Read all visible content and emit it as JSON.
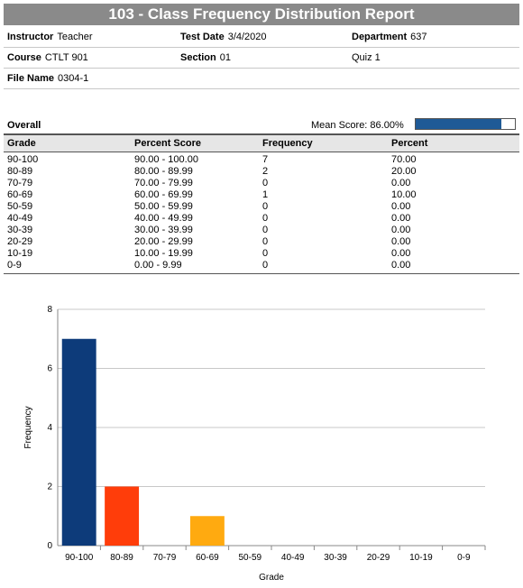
{
  "report_title": "103 - Class Frequency Distribution Report",
  "info": {
    "instructor_label": "Instructor",
    "instructor_value": "Teacher",
    "test_date_label": "Test Date",
    "test_date_value": "3/4/2020",
    "department_label": "Department",
    "department_value": "637",
    "course_label": "Course",
    "course_value": "CTLT 901",
    "section_label": "Section",
    "section_value": "01",
    "quiz_label": "Quiz 1",
    "file_name_label": "File Name",
    "file_name_value": "0304-1"
  },
  "overall": {
    "label": "Overall",
    "mean_score_text": "Mean Score: 86.00%",
    "mean_score_fraction": 0.86,
    "bar_color": "#1f5a96"
  },
  "table": {
    "headers": [
      "Grade",
      "Percent Score",
      "Frequency",
      "Percent"
    ],
    "rows": [
      [
        "90-100",
        "90.00 - 100.00",
        "7",
        "70.00"
      ],
      [
        "80-89",
        "80.00 - 89.99",
        "2",
        "20.00"
      ],
      [
        "70-79",
        "70.00 - 79.99",
        "0",
        "0.00"
      ],
      [
        "60-69",
        "60.00 - 69.99",
        "1",
        "10.00"
      ],
      [
        "50-59",
        "50.00 - 59.99",
        "0",
        "0.00"
      ],
      [
        "40-49",
        "40.00 - 49.99",
        "0",
        "0.00"
      ],
      [
        "30-39",
        "30.00 - 39.99",
        "0",
        "0.00"
      ],
      [
        "20-29",
        "20.00 - 29.99",
        "0",
        "0.00"
      ],
      [
        "10-19",
        "10.00 - 19.99",
        "0",
        "0.00"
      ],
      [
        "0-9",
        "0.00 - 9.99",
        "0",
        "0.00"
      ]
    ]
  },
  "chart_data": {
    "type": "bar",
    "categories": [
      "90-100",
      "80-89",
      "70-79",
      "60-69",
      "50-59",
      "40-49",
      "30-39",
      "20-29",
      "10-19",
      "0-9"
    ],
    "values": [
      7,
      2,
      0,
      1,
      0,
      0,
      0,
      0,
      0,
      0
    ],
    "colors": [
      "#0d3b7a",
      "#ff3d0a",
      "#999999",
      "#ffaa10",
      "#999999",
      "#999999",
      "#999999",
      "#999999",
      "#999999",
      "#999999"
    ],
    "xlabel": "Grade",
    "ylabel": "Frequency",
    "ylim": [
      0,
      8
    ],
    "yticks": [
      0,
      2,
      4,
      6,
      8
    ],
    "grid": true
  }
}
